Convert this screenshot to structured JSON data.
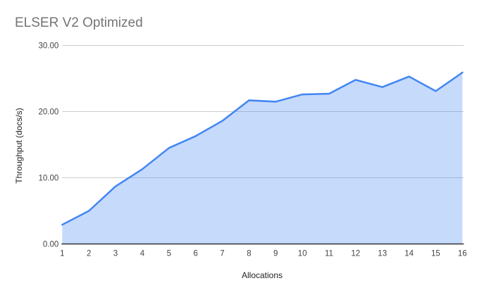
{
  "chart_data": {
    "type": "area",
    "title": "ELSER V2 Optimized",
    "xlabel": "Allocations",
    "ylabel": "Throughput (docs/s)",
    "categories": [
      "1",
      "2",
      "3",
      "4",
      "5",
      "6",
      "7",
      "8",
      "9",
      "10",
      "11",
      "12",
      "13",
      "14",
      "15",
      "16"
    ],
    "series": [
      {
        "name": "Throughput (docs/s)",
        "values": [
          2.9,
          5.0,
          8.7,
          11.3,
          14.5,
          16.3,
          18.6,
          21.7,
          21.5,
          22.6,
          22.7,
          24.8,
          23.7,
          25.3,
          23.1,
          25.9
        ]
      }
    ],
    "ylim": [
      0,
      30
    ],
    "yticks": [
      0,
      10,
      20,
      30
    ],
    "ytick_labels": [
      "0.00",
      "10.00",
      "20.00",
      "30.00"
    ],
    "grid": true,
    "legend_position": "none",
    "colors": {
      "line": "#4285f4",
      "area_fill": "rgba(66,133,244,0.30)",
      "gridline": "#cccccc",
      "axis_line": "#333333",
      "tick_label": "#444444",
      "title": "#757575",
      "axis_title": "#222222",
      "background": "#ffffff"
    }
  }
}
